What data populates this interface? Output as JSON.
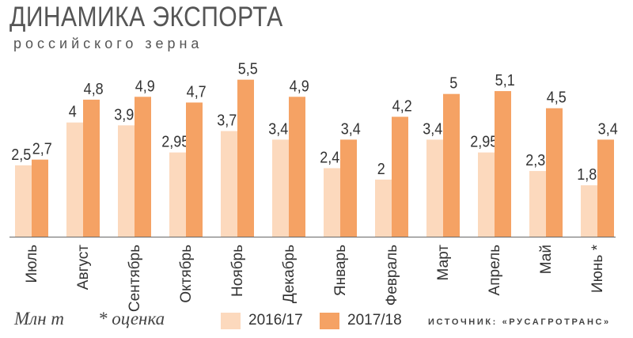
{
  "title": "ДИНАМИКА ЭКСПОРТА",
  "subtitle": "российского зерна",
  "units": "Млн т",
  "note": "* оценка",
  "source": "ИСТОЧНИК: «РУСАГРОТРАНС»",
  "colors": {
    "s1": "#fcd9bd",
    "s2": "#f5a264",
    "axis": "#666666",
    "text": "#333333"
  },
  "chart_data": {
    "type": "bar",
    "title": "ДИНАМИКА ЭКСПОРТА",
    "subtitle": "российского зерна",
    "ylabel": "Млн т",
    "ylim": [
      0,
      6.35
    ],
    "grid": false,
    "legend_position": "bottom",
    "categories": [
      "Июль",
      "Август",
      "Сентябрь",
      "Октябрь",
      "Ноябрь",
      "Декабрь",
      "Январь",
      "Февраль",
      "Март",
      "Апрель",
      "Май",
      "Июнь *"
    ],
    "series": [
      {
        "name": "2016/17",
        "values": [
          2.5,
          4,
          3.9,
          2.95,
          3.7,
          3.4,
          2.4,
          2,
          3.4,
          2.95,
          2.3,
          1.8
        ],
        "labels": [
          "2,5",
          "4",
          "3,9",
          "2,95",
          "3,7",
          "3,4",
          "2,4",
          "2",
          "3,4",
          "2,95",
          "2,3",
          "1,8"
        ]
      },
      {
        "name": "2017/18",
        "values": [
          2.7,
          4.8,
          4.9,
          4.7,
          5.5,
          4.9,
          3.4,
          4.2,
          5,
          5.1,
          4.5,
          3.4
        ],
        "labels": [
          "2,7",
          "4,8",
          "4,9",
          "4,7",
          "5,5",
          "4,9",
          "3,4",
          "4,2",
          "5",
          "5,1",
          "4,5",
          "3,4"
        ]
      }
    ]
  }
}
